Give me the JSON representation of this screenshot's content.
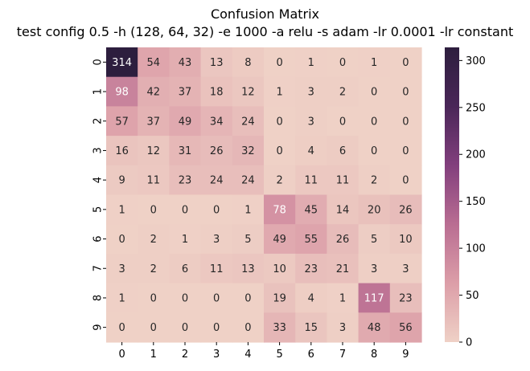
{
  "chart_data": {
    "type": "heatmap",
    "title": "Confusion Matrix",
    "subtitle": "test config 0.5 -h (128, 64, 32) -e 1000 -a relu -s adam -lr 0.0001 -lr constant",
    "x_ticks": [
      "0",
      "1",
      "2",
      "3",
      "4",
      "5",
      "6",
      "7",
      "8",
      "9"
    ],
    "y_ticks": [
      "0",
      "1",
      "2",
      "3",
      "4",
      "5",
      "6",
      "7",
      "8",
      "9"
    ],
    "matrix": [
      [
        314,
        54,
        43,
        13,
        8,
        0,
        1,
        0,
        1,
        0
      ],
      [
        98,
        42,
        37,
        18,
        12,
        1,
        3,
        2,
        0,
        0
      ],
      [
        57,
        37,
        49,
        34,
        24,
        0,
        3,
        0,
        0,
        0
      ],
      [
        16,
        12,
        31,
        26,
        32,
        0,
        4,
        6,
        0,
        0
      ],
      [
        9,
        11,
        23,
        24,
        24,
        2,
        11,
        11,
        2,
        0
      ],
      [
        1,
        0,
        0,
        0,
        1,
        78,
        45,
        14,
        20,
        26
      ],
      [
        0,
        2,
        1,
        3,
        5,
        49,
        55,
        26,
        5,
        10
      ],
      [
        3,
        2,
        6,
        11,
        13,
        10,
        23,
        21,
        3,
        3
      ],
      [
        1,
        0,
        0,
        0,
        0,
        19,
        4,
        1,
        117,
        23
      ],
      [
        0,
        0,
        0,
        0,
        0,
        33,
        15,
        3,
        48,
        56
      ]
    ],
    "vmin": 0,
    "vmax": 314,
    "colorbar_ticks": [
      0,
      50,
      100,
      150,
      200,
      250,
      300
    ],
    "colormap": [
      "#efd1c6",
      "#dc9ea8",
      "#b96d92",
      "#823f7d",
      "#4a2658",
      "#2d1e3e"
    ],
    "annotation_colors": {
      "dark_text": "#262626",
      "light_text": "#ffffff"
    }
  }
}
